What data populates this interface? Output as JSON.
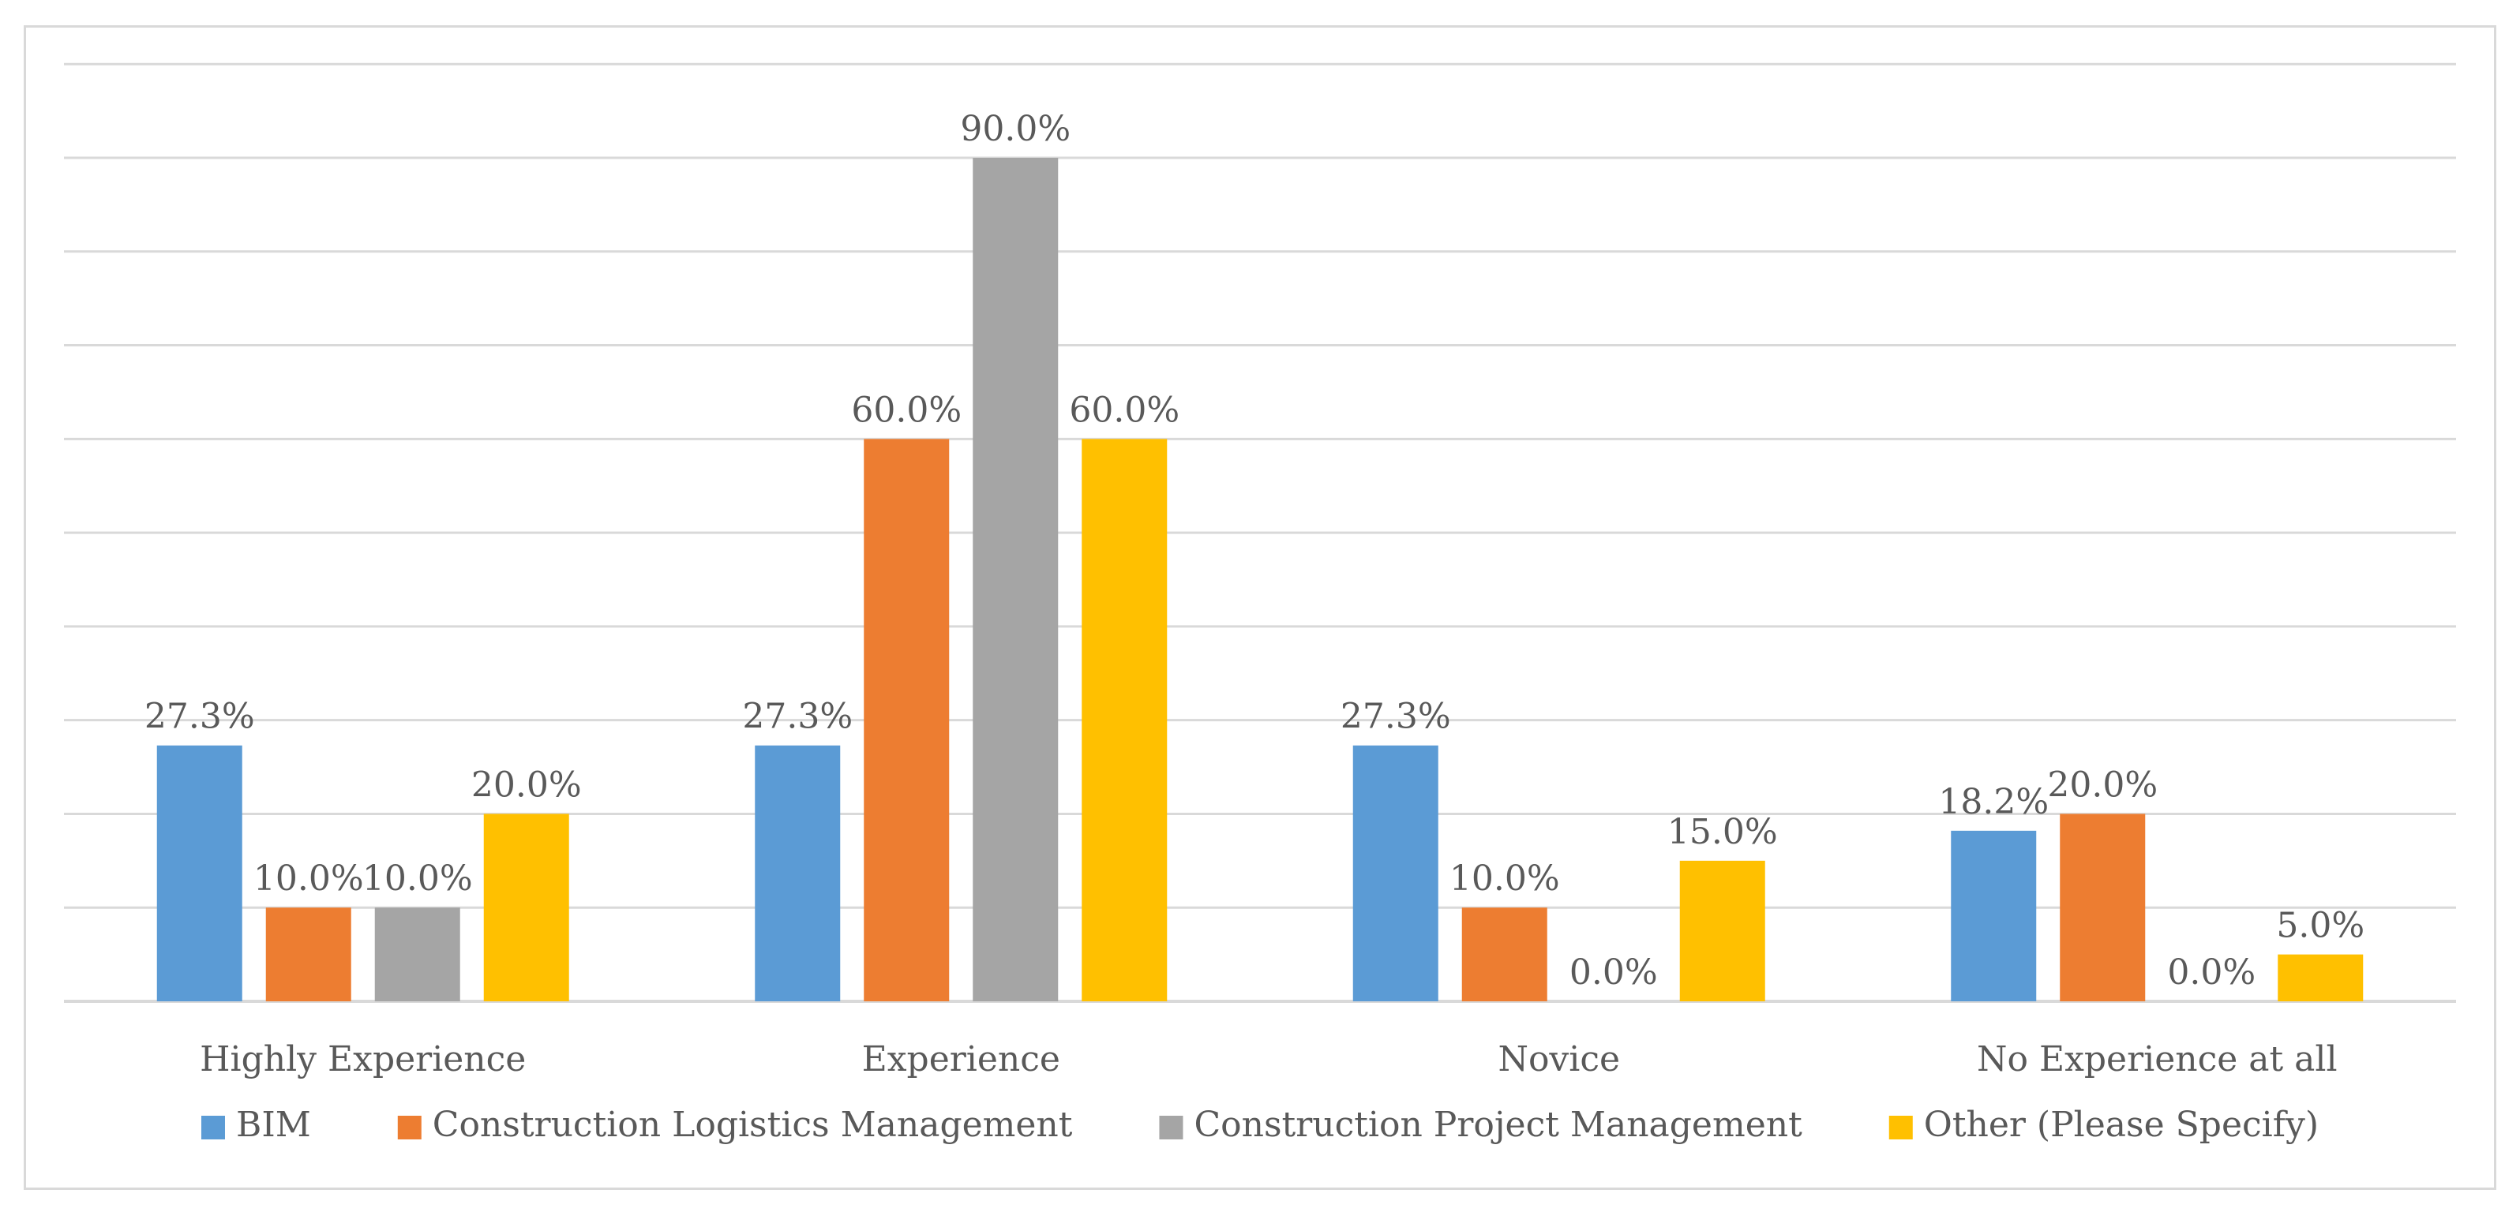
{
  "chart_data": {
    "type": "bar",
    "title": "",
    "xlabel": "",
    "ylabel": "",
    "ylim": [
      0,
      100
    ],
    "grid": true,
    "legend_position": "bottom",
    "categories": [
      "Highly Experience",
      "Experience",
      "Novice",
      "No Experience at all"
    ],
    "series": [
      {
        "name": "BIM",
        "color": "#5b9bd5",
        "values": [
          27.3,
          27.3,
          27.3,
          18.2
        ],
        "labels": [
          "27.3%",
          "27.3%",
          "27.3%",
          "18.2%"
        ]
      },
      {
        "name": "Construction Logistics Management",
        "color": "#ed7d31",
        "values": [
          10.0,
          60.0,
          10.0,
          20.0
        ],
        "labels": [
          "10.0%",
          "60.0%",
          "10.0%",
          "20.0%"
        ]
      },
      {
        "name": "Construction Project Management",
        "color": "#a5a5a5",
        "values": [
          10.0,
          90.0,
          0.0,
          0.0
        ],
        "labels": [
          "10.0%",
          "90.0%",
          "0.0%",
          "0.0%"
        ]
      },
      {
        "name": "Other (Please Specify)",
        "color": "#ffc000",
        "values": [
          20.0,
          60.0,
          15.0,
          5.0
        ],
        "labels": [
          "20.0%",
          "60.0%",
          "15.0%",
          "5.0%"
        ]
      }
    ]
  }
}
